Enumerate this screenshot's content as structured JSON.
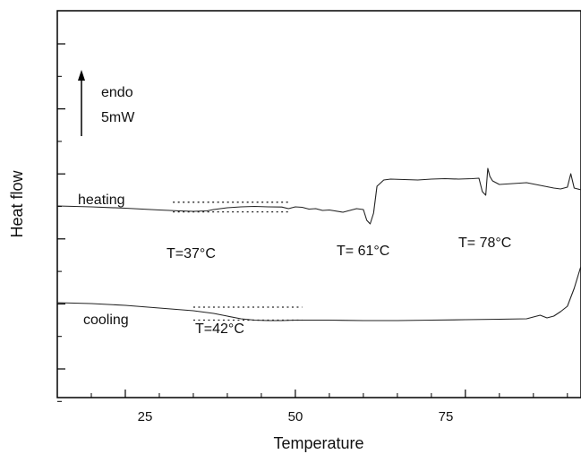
{
  "chart_data": {
    "type": "line",
    "title": "",
    "xlabel": "Temperature",
    "ylabel": "Heat flow",
    "xlim": [
      15,
      92
    ],
    "xticks": [
      25,
      50,
      75
    ],
    "y_units": "arbitrary (offset traces)",
    "scale_bar": {
      "label_top": "endo",
      "label_bottom": "5mW",
      "length_mW": 5
    },
    "series": [
      {
        "name": "heating",
        "x": [
          15,
          20,
          25,
          30,
          33,
          35,
          37,
          38,
          40,
          42,
          44,
          46,
          48,
          49,
          50,
          51,
          52,
          53,
          54,
          55,
          57,
          59,
          60,
          60.5,
          61,
          61.5,
          62,
          63,
          64,
          66,
          68,
          70,
          72,
          74,
          76,
          77,
          77.5,
          78,
          78.3,
          78.6,
          79,
          80,
          82,
          84,
          86,
          88,
          89,
          90,
          90.5,
          91,
          92
        ],
        "y": [
          0,
          -0.1,
          -0.25,
          -0.45,
          -0.55,
          -0.6,
          -0.55,
          -0.4,
          -0.2,
          -0.1,
          -0.05,
          -0.1,
          -0.12,
          -0.3,
          -0.1,
          -0.15,
          -0.35,
          -0.3,
          -0.5,
          -0.45,
          -0.7,
          -0.3,
          -0.4,
          -1.6,
          -2.0,
          -0.8,
          2.2,
          2.9,
          3.0,
          2.95,
          2.9,
          3.0,
          3.05,
          3.0,
          3.05,
          3.1,
          1.6,
          1.2,
          4.2,
          3.3,
          2.8,
          2.4,
          2.5,
          2.6,
          2.3,
          2.0,
          1.9,
          2.1,
          3.6,
          2.0,
          1.8
        ]
      },
      {
        "name": "cooling",
        "x": [
          15,
          20,
          25,
          30,
          35,
          38,
          40,
          42,
          44,
          46,
          48,
          50,
          55,
          60,
          65,
          70,
          75,
          80,
          84,
          85,
          86,
          87,
          88,
          89,
          90,
          91,
          92
        ],
        "y": [
          -9.1,
          -9.2,
          -9.4,
          -9.7,
          -10.0,
          -10.3,
          -10.6,
          -10.9,
          -11.05,
          -11.1,
          -11.1,
          -11.05,
          -11.05,
          -11.1,
          -11.1,
          -11.05,
          -11.0,
          -10.95,
          -10.9,
          -10.7,
          -10.5,
          -10.8,
          -10.6,
          -10.1,
          -9.5,
          -7.5,
          -5.0
        ]
      }
    ],
    "annotations": [
      {
        "text": "T=37°C",
        "series": "heating"
      },
      {
        "text": "T= 61°C",
        "series": "heating"
      },
      {
        "text": "T= 78°C",
        "series": "heating"
      },
      {
        "text": "T=42°C",
        "series": "cooling"
      }
    ],
    "grid": false,
    "legend": "none"
  }
}
